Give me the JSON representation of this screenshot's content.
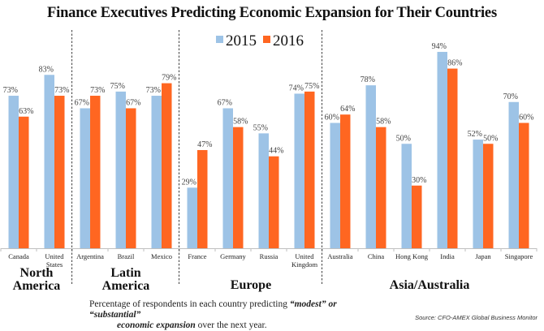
{
  "chart_data": {
    "type": "bar",
    "title": "Finance Executives Predicting Economic Expansion for Their Countries",
    "xlabel": "",
    "ylabel": "",
    "ylim": [
      0,
      100
    ],
    "grid": false,
    "legend_position": "top-center",
    "categories": [
      "Canada",
      "United States",
      "Argentina",
      "Brazil",
      "Mexico",
      "France",
      "Germany",
      "Russia",
      "United Kingdom",
      "Australia",
      "China",
      "Hong Kong",
      "India",
      "Japan",
      "Singapore"
    ],
    "category_lines": [
      [
        "Canada"
      ],
      [
        "United",
        "States"
      ],
      [
        "Argentina"
      ],
      [
        "Brazil"
      ],
      [
        "Mexico"
      ],
      [
        "France"
      ],
      [
        "Germany"
      ],
      [
        "Russia"
      ],
      [
        "United",
        "Kingdom"
      ],
      [
        "Australia"
      ],
      [
        "China"
      ],
      [
        "Hong Kong"
      ],
      [
        "India"
      ],
      [
        "Japan"
      ],
      [
        "Singapore"
      ]
    ],
    "series": [
      {
        "name": "2015",
        "color": "#9dc3e6",
        "values": [
          73,
          83,
          67,
          75,
          73,
          29,
          67,
          55,
          74,
          60,
          78,
          50,
          94,
          52,
          70
        ]
      },
      {
        "name": "2016",
        "color": "#ff6621",
        "values": [
          63,
          73,
          73,
          67,
          79,
          47,
          58,
          44,
          75,
          64,
          58,
          30,
          86,
          50,
          60
        ]
      }
    ],
    "regions": [
      {
        "name_lines": [
          "North",
          "America"
        ],
        "start": 0,
        "end": 1
      },
      {
        "name_lines": [
          "Latin",
          "America"
        ],
        "start": 2,
        "end": 4
      },
      {
        "name_lines": [
          "Europe"
        ],
        "start": 5,
        "end": 8
      },
      {
        "name_lines": [
          "Asia/Australia"
        ],
        "start": 9,
        "end": 14
      }
    ],
    "value_suffix": "%"
  },
  "footnote": {
    "line1_plain": "Percentage of respondents in each country predicting ",
    "line1_emph": "“modest” or “substantial”",
    "line2_emph": "economic expansion",
    "line2_plain": " over the next year."
  },
  "source": "Source: CFO-AMEX Global Business Monitor"
}
